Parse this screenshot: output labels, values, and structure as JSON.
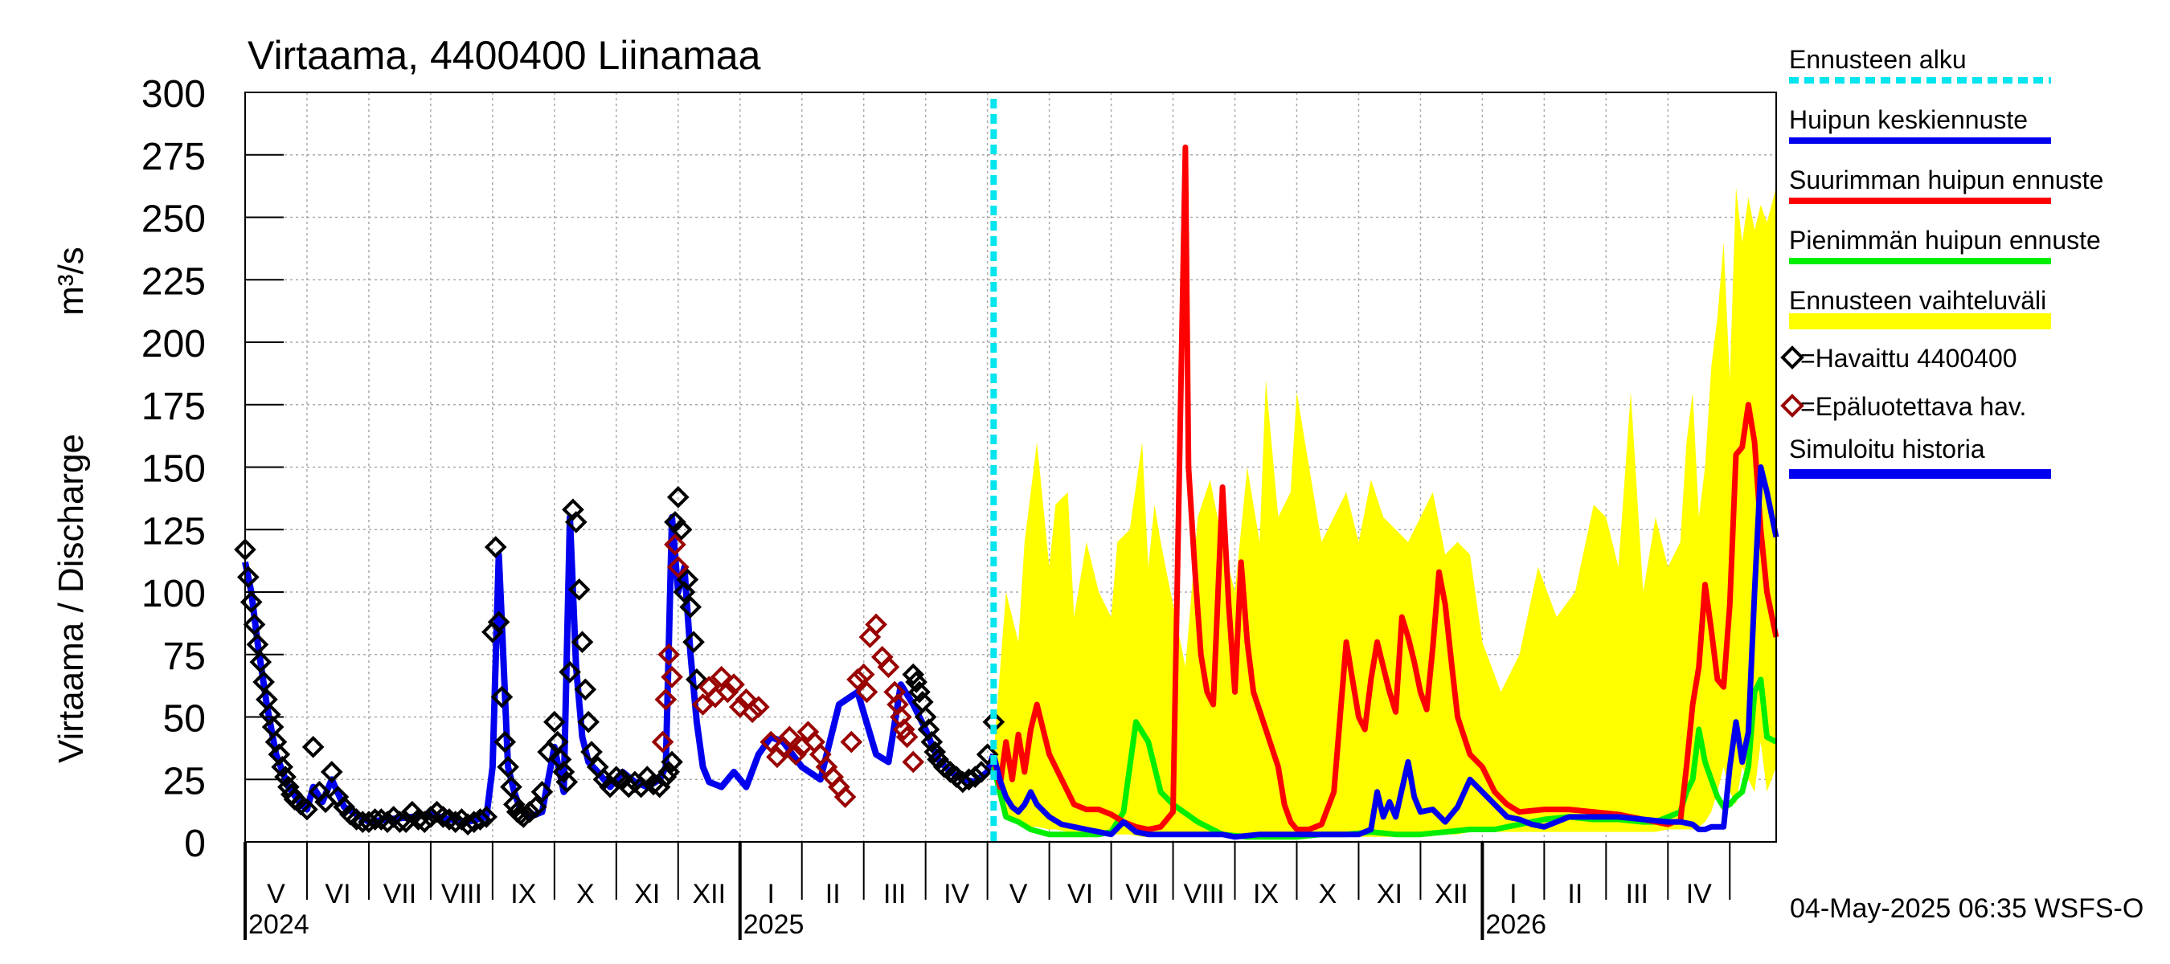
{
  "chart_data": {
    "type": "line",
    "title": "Virtaama, 4400400 Liinamaa",
    "ylabel": "Virtaama / Discharge",
    "yunit": "m³/s",
    "ylim": [
      0,
      300
    ],
    "yticks": [
      0,
      25,
      50,
      75,
      100,
      125,
      150,
      175,
      200,
      225,
      250,
      275,
      300
    ],
    "xlim": [
      0,
      24.75
    ],
    "x_unit": "months since 2024-05-01",
    "month_labels": [
      "V",
      "VI",
      "VII",
      "VIII",
      "IX",
      "X",
      "XI",
      "XII",
      "I",
      "II",
      "III",
      "IV",
      "V",
      "VI",
      "VII",
      "VIII",
      "IX",
      "X",
      "XI",
      "XII",
      "I",
      "II",
      "III",
      "IV"
    ],
    "years": [
      {
        "label": "2024",
        "x": 0
      },
      {
        "label": "2025",
        "x": 8
      },
      {
        "label": "2026",
        "x": 20
      }
    ],
    "forecast_start_x": 12.1,
    "timestamp": "04-May-2025 06:35 WSFS-O",
    "colors": {
      "forecast_start": "#00e5ee",
      "mean": "#0000ee",
      "max": "#ff0000",
      "min": "#00ee00",
      "range": "#ffff00",
      "observed": "#000000",
      "unreliable": "#990000",
      "simulated": "#0000ee"
    },
    "legend": [
      {
        "label": "Ennusteen alku",
        "style": "dashed",
        "color": "#00e5ee"
      },
      {
        "label": "Huipun keskiennuste",
        "style": "line",
        "color": "#0000ee"
      },
      {
        "label": "Suurimman huipun ennuste",
        "style": "line",
        "color": "#ff0000"
      },
      {
        "label": "Pienimmän huipun ennuste",
        "style": "line",
        "color": "#00ee00"
      },
      {
        "label": "Ennusteen vaihteluväli",
        "style": "band",
        "color": "#ffff00"
      },
      {
        "label": "=Havaittu 4400400",
        "style": "diamond",
        "color": "#000000"
      },
      {
        "label": "=Epäluotettava hav.",
        "style": "diamond",
        "color": "#990000"
      },
      {
        "label": "Simuloitu historia",
        "style": "thick",
        "color": "#0000ee"
      }
    ],
    "series": {
      "simulated_history": {
        "x": [
          0,
          0.1,
          0.2,
          0.35,
          0.5,
          0.7,
          0.9,
          1.0,
          1.1,
          1.25,
          1.4,
          1.6,
          1.8,
          2.0,
          2.3,
          2.7,
          3.0,
          3.3,
          3.6,
          3.9,
          4.0,
          4.1,
          4.15,
          4.25,
          4.35,
          4.45,
          4.6,
          4.8,
          5.0,
          5.15,
          5.25,
          5.35,
          5.45,
          5.55,
          5.7,
          5.9,
          6.1,
          6.3,
          6.5,
          6.7,
          6.8,
          6.9,
          7.0,
          7.1,
          7.2,
          7.3,
          7.4,
          7.5,
          7.7,
          7.9,
          8.1,
          8.3,
          8.5,
          8.7,
          9.0,
          9.3,
          9.6,
          9.9,
          10.2,
          10.4,
          10.6,
          10.8,
          11.0,
          11.2,
          11.4,
          11.6,
          11.8,
          12.0,
          12.1
        ],
        "y": [
          112,
          100,
          80,
          55,
          35,
          22,
          15,
          13,
          22,
          16,
          25,
          14,
          11,
          8,
          9,
          10,
          11,
          9,
          8,
          10,
          30,
          115,
          88,
          30,
          20,
          13,
          10,
          12,
          38,
          20,
          130,
          70,
          42,
          32,
          28,
          22,
          28,
          24,
          22,
          25,
          30,
          130,
          100,
          110,
          75,
          48,
          30,
          24,
          22,
          28,
          22,
          35,
          42,
          40,
          30,
          25,
          55,
          60,
          35,
          32,
          63,
          55,
          45,
          33,
          28,
          25,
          24,
          28,
          35
        ]
      },
      "observed": {
        "x": [
          0,
          0.05,
          0.1,
          0.15,
          0.2,
          0.25,
          0.3,
          0.35,
          0.4,
          0.45,
          0.5,
          0.55,
          0.6,
          0.65,
          0.7,
          0.75,
          0.8,
          0.9,
          1.0,
          1.1,
          1.2,
          1.3,
          1.4,
          1.5,
          1.6,
          1.7,
          1.8,
          1.9,
          2.0,
          2.1,
          2.2,
          2.3,
          2.4,
          2.5,
          2.6,
          2.7,
          2.8,
          2.9,
          3.0,
          3.1,
          3.2,
          3.3,
          3.4,
          3.5,
          3.6,
          3.7,
          3.8,
          3.9,
          4.0,
          4.05,
          4.1,
          4.15,
          4.2,
          4.25,
          4.3,
          4.35,
          4.4,
          4.45,
          4.5,
          4.6,
          4.7,
          4.8,
          4.9,
          5.0,
          5.05,
          5.1,
          5.15,
          5.2,
          5.25,
          5.3,
          5.35,
          5.4,
          5.45,
          5.5,
          5.55,
          5.6,
          5.7,
          5.8,
          5.9,
          6.0,
          6.1,
          6.2,
          6.3,
          6.4,
          6.5,
          6.6,
          6.7,
          6.8,
          6.85,
          6.9,
          6.95,
          7.0,
          7.05,
          7.1,
          7.15,
          7.2,
          7.25,
          7.3,
          10.8,
          10.85,
          10.9,
          10.95,
          11.0,
          11.05,
          11.1,
          11.15,
          11.2,
          11.3,
          11.4,
          11.5,
          11.6,
          11.7,
          11.8,
          11.9,
          12.0,
          12.1
        ],
        "y": [
          117,
          106,
          96,
          87,
          79,
          72,
          64,
          57,
          51,
          46,
          40,
          35,
          30,
          26,
          22,
          19,
          17,
          15,
          13,
          38,
          20,
          16,
          28,
          18,
          14,
          11,
          9,
          8,
          8,
          9,
          9,
          8,
          10,
          8,
          8,
          12,
          9,
          8,
          10,
          12,
          10,
          9,
          8,
          9,
          7,
          8,
          9,
          10,
          84,
          118,
          88,
          58,
          40,
          30,
          22,
          15,
          12,
          11,
          10,
          12,
          14,
          20,
          36,
          48,
          40,
          33,
          28,
          24,
          68,
          133,
          128,
          101,
          80,
          61,
          48,
          36,
          30,
          25,
          22,
          26,
          25,
          22,
          24,
          22,
          26,
          23,
          22,
          26,
          28,
          32,
          128,
          138,
          125,
          100,
          105,
          94,
          80,
          65,
          67,
          64,
          60,
          56,
          50,
          45,
          40,
          36,
          33,
          30,
          28,
          26,
          24,
          25,
          26,
          28,
          35,
          48
        ]
      },
      "unreliable": {
        "x": [
          6.75,
          6.8,
          6.85,
          6.9,
          6.95,
          7.0,
          7.4,
          7.5,
          7.6,
          7.7,
          7.8,
          7.9,
          8.0,
          8.1,
          8.2,
          8.3,
          8.5,
          8.6,
          8.7,
          8.8,
          8.9,
          9.0,
          9.1,
          9.2,
          9.3,
          9.4,
          9.5,
          9.6,
          9.7,
          9.8,
          9.9,
          10.0,
          10.05,
          10.1,
          10.2,
          10.3,
          10.4,
          10.5,
          10.55,
          10.6,
          10.65,
          10.7,
          10.8
        ],
        "y": [
          40,
          57,
          75,
          66,
          119,
          110,
          55,
          62,
          58,
          66,
          60,
          63,
          54,
          57,
          52,
          54,
          40,
          34,
          38,
          42,
          35,
          38,
          44,
          40,
          35,
          30,
          26,
          22,
          18,
          40,
          65,
          67,
          60,
          82,
          87,
          74,
          70,
          60,
          55,
          50,
          45,
          42,
          32
        ]
      },
      "forecast_range": {
        "x": [
          12.1,
          12.3,
          12.5,
          12.6,
          12.8,
          13.0,
          13.1,
          13.3,
          13.4,
          13.6,
          13.8,
          14.0,
          14.1,
          14.3,
          14.5,
          14.6,
          14.7,
          14.8,
          15.0,
          15.2,
          15.4,
          15.6,
          15.8,
          16.0,
          16.2,
          16.4,
          16.5,
          16.7,
          16.9,
          17.0,
          17.2,
          17.4,
          17.6,
          17.8,
          18.0,
          18.2,
          18.4,
          18.6,
          18.8,
          19.0,
          19.2,
          19.4,
          19.6,
          19.8,
          20.0,
          20.3,
          20.6,
          20.9,
          21.2,
          21.5,
          21.8,
          22.0,
          22.2,
          22.4,
          22.6,
          22.8,
          23.0,
          23.2,
          23.3,
          23.4,
          23.5,
          23.6,
          23.7,
          23.8,
          23.9,
          24.0,
          24.1,
          24.2,
          24.3,
          24.4,
          24.5,
          24.6,
          24.75
        ],
        "hi": [
          35,
          100,
          80,
          120,
          160,
          110,
          135,
          140,
          90,
          120,
          100,
          90,
          120,
          125,
          160,
          110,
          135,
          120,
          95,
          70,
          130,
          145,
          120,
          100,
          150,
          120,
          185,
          130,
          140,
          180,
          150,
          120,
          130,
          140,
          120,
          145,
          130,
          125,
          120,
          130,
          140,
          115,
          120,
          115,
          80,
          60,
          75,
          110,
          90,
          100,
          135,
          130,
          110,
          180,
          100,
          130,
          110,
          120,
          160,
          180,
          130,
          150,
          190,
          210,
          240,
          185,
          262,
          240,
          258,
          245,
          255,
          248,
          262
        ],
        "lo": [
          30,
          10,
          8,
          6,
          6,
          5,
          5,
          4,
          4,
          3,
          3,
          3,
          3,
          3,
          2,
          2,
          2,
          2,
          2,
          2,
          2,
          2,
          2,
          2,
          2,
          2,
          2,
          2,
          2,
          2,
          2,
          2,
          2,
          2,
          2,
          2,
          2,
          2,
          2,
          2,
          3,
          3,
          3,
          4,
          4,
          4,
          4,
          4,
          4,
          4,
          4,
          4,
          4,
          4,
          4,
          4,
          5,
          5,
          5,
          5,
          6,
          8,
          12,
          20,
          30,
          20,
          15,
          30,
          25,
          20,
          40,
          20,
          30
        ]
      },
      "mean": {
        "x": [
          12.1,
          12.2,
          12.3,
          12.4,
          12.5,
          12.6,
          12.7,
          12.8,
          13.0,
          13.2,
          13.4,
          13.6,
          13.8,
          14.0,
          14.2,
          14.4,
          14.6,
          14.8,
          15.0,
          15.2,
          15.4,
          15.6,
          15.8,
          16.0,
          16.4,
          16.8,
          17.2,
          17.6,
          18.0,
          18.2,
          18.3,
          18.4,
          18.5,
          18.6,
          18.8,
          18.9,
          19.0,
          19.2,
          19.4,
          19.6,
          19.8,
          20.0,
          20.2,
          20.4,
          20.6,
          20.8,
          21.0,
          21.4,
          21.8,
          22.2,
          22.6,
          23.0,
          23.2,
          23.4,
          23.5,
          23.6,
          23.7,
          23.75,
          23.8,
          23.9,
          24.0,
          24.1,
          24.2,
          24.3,
          24.4,
          24.5,
          24.6,
          24.75
        ],
        "y": [
          35,
          25,
          18,
          14,
          12,
          15,
          20,
          15,
          10,
          7,
          6,
          5,
          4,
          3,
          8,
          4,
          3,
          3,
          3,
          3,
          3,
          3,
          3,
          2,
          3,
          3,
          3,
          3,
          3,
          5,
          20,
          10,
          16,
          10,
          32,
          18,
          12,
          13,
          8,
          14,
          25,
          20,
          15,
          10,
          9,
          7,
          6,
          10,
          10,
          10,
          9,
          8,
          8,
          7,
          5,
          5,
          6,
          6,
          6,
          6,
          30,
          48,
          32,
          44,
          100,
          150,
          140,
          122
        ]
      },
      "max": {
        "x": [
          12.1,
          12.2,
          12.3,
          12.4,
          12.5,
          12.6,
          12.7,
          12.8,
          13.0,
          13.2,
          13.4,
          13.6,
          13.8,
          14.0,
          14.2,
          14.4,
          14.6,
          14.8,
          15.0,
          15.2,
          15.25,
          15.35,
          15.45,
          15.55,
          15.65,
          15.8,
          15.9,
          16.0,
          16.1,
          16.2,
          16.3,
          16.5,
          16.7,
          16.8,
          16.9,
          17.0,
          17.2,
          17.4,
          17.6,
          17.8,
          17.9,
          18.0,
          18.1,
          18.2,
          18.3,
          18.4,
          18.5,
          18.6,
          18.7,
          18.8,
          18.9,
          19.0,
          19.1,
          19.2,
          19.3,
          19.4,
          19.5,
          19.6,
          19.8,
          20.0,
          20.2,
          20.4,
          20.6,
          21.0,
          21.4,
          21.8,
          22.2,
          22.6,
          23.0,
          23.1,
          23.2,
          23.3,
          23.4,
          23.5,
          23.6,
          23.7,
          23.8,
          23.9,
          24.0,
          24.1,
          24.2,
          24.3,
          24.4,
          24.5,
          24.6,
          24.75
        ],
        "y": [
          35,
          22,
          40,
          25,
          43,
          28,
          45,
          55,
          35,
          25,
          15,
          13,
          13,
          11,
          8,
          6,
          5,
          6,
          12,
          278,
          150,
          110,
          75,
          60,
          55,
          142,
          95,
          60,
          112,
          80,
          60,
          45,
          30,
          15,
          8,
          5,
          5,
          7,
          20,
          80,
          65,
          50,
          45,
          65,
          80,
          70,
          60,
          52,
          90,
          82,
          72,
          60,
          53,
          78,
          108,
          95,
          72,
          50,
          35,
          30,
          20,
          15,
          12,
          13,
          13,
          12,
          11,
          9,
          7,
          8,
          8,
          30,
          55,
          70,
          103,
          85,
          65,
          62,
          95,
          155,
          158,
          175,
          160,
          125,
          100,
          82
        ]
      },
      "min": {
        "x": [
          12.1,
          12.3,
          12.5,
          12.7,
          13.0,
          13.4,
          13.8,
          14.0,
          14.2,
          14.4,
          14.6,
          14.8,
          15.0,
          15.4,
          15.8,
          16.2,
          16.6,
          17.0,
          17.4,
          17.8,
          18.2,
          18.6,
          19.0,
          19.4,
          19.8,
          20.2,
          20.6,
          21.0,
          21.4,
          21.8,
          22.2,
          22.6,
          22.8,
          23.0,
          23.2,
          23.3,
          23.4,
          23.5,
          23.6,
          23.7,
          23.8,
          23.9,
          24.0,
          24.1,
          24.2,
          24.3,
          24.4,
          24.5,
          24.6,
          24.75
        ],
        "y": [
          30,
          10,
          8,
          5,
          3,
          3,
          3,
          4,
          12,
          48,
          40,
          20,
          15,
          8,
          3,
          2,
          2,
          2,
          3,
          3,
          4,
          3,
          3,
          4,
          5,
          5,
          7,
          9,
          10,
          9,
          9,
          8,
          8,
          10,
          12,
          20,
          25,
          45,
          32,
          25,
          18,
          14,
          15,
          18,
          20,
          30,
          60,
          65,
          42,
          40
        ]
      }
    }
  }
}
